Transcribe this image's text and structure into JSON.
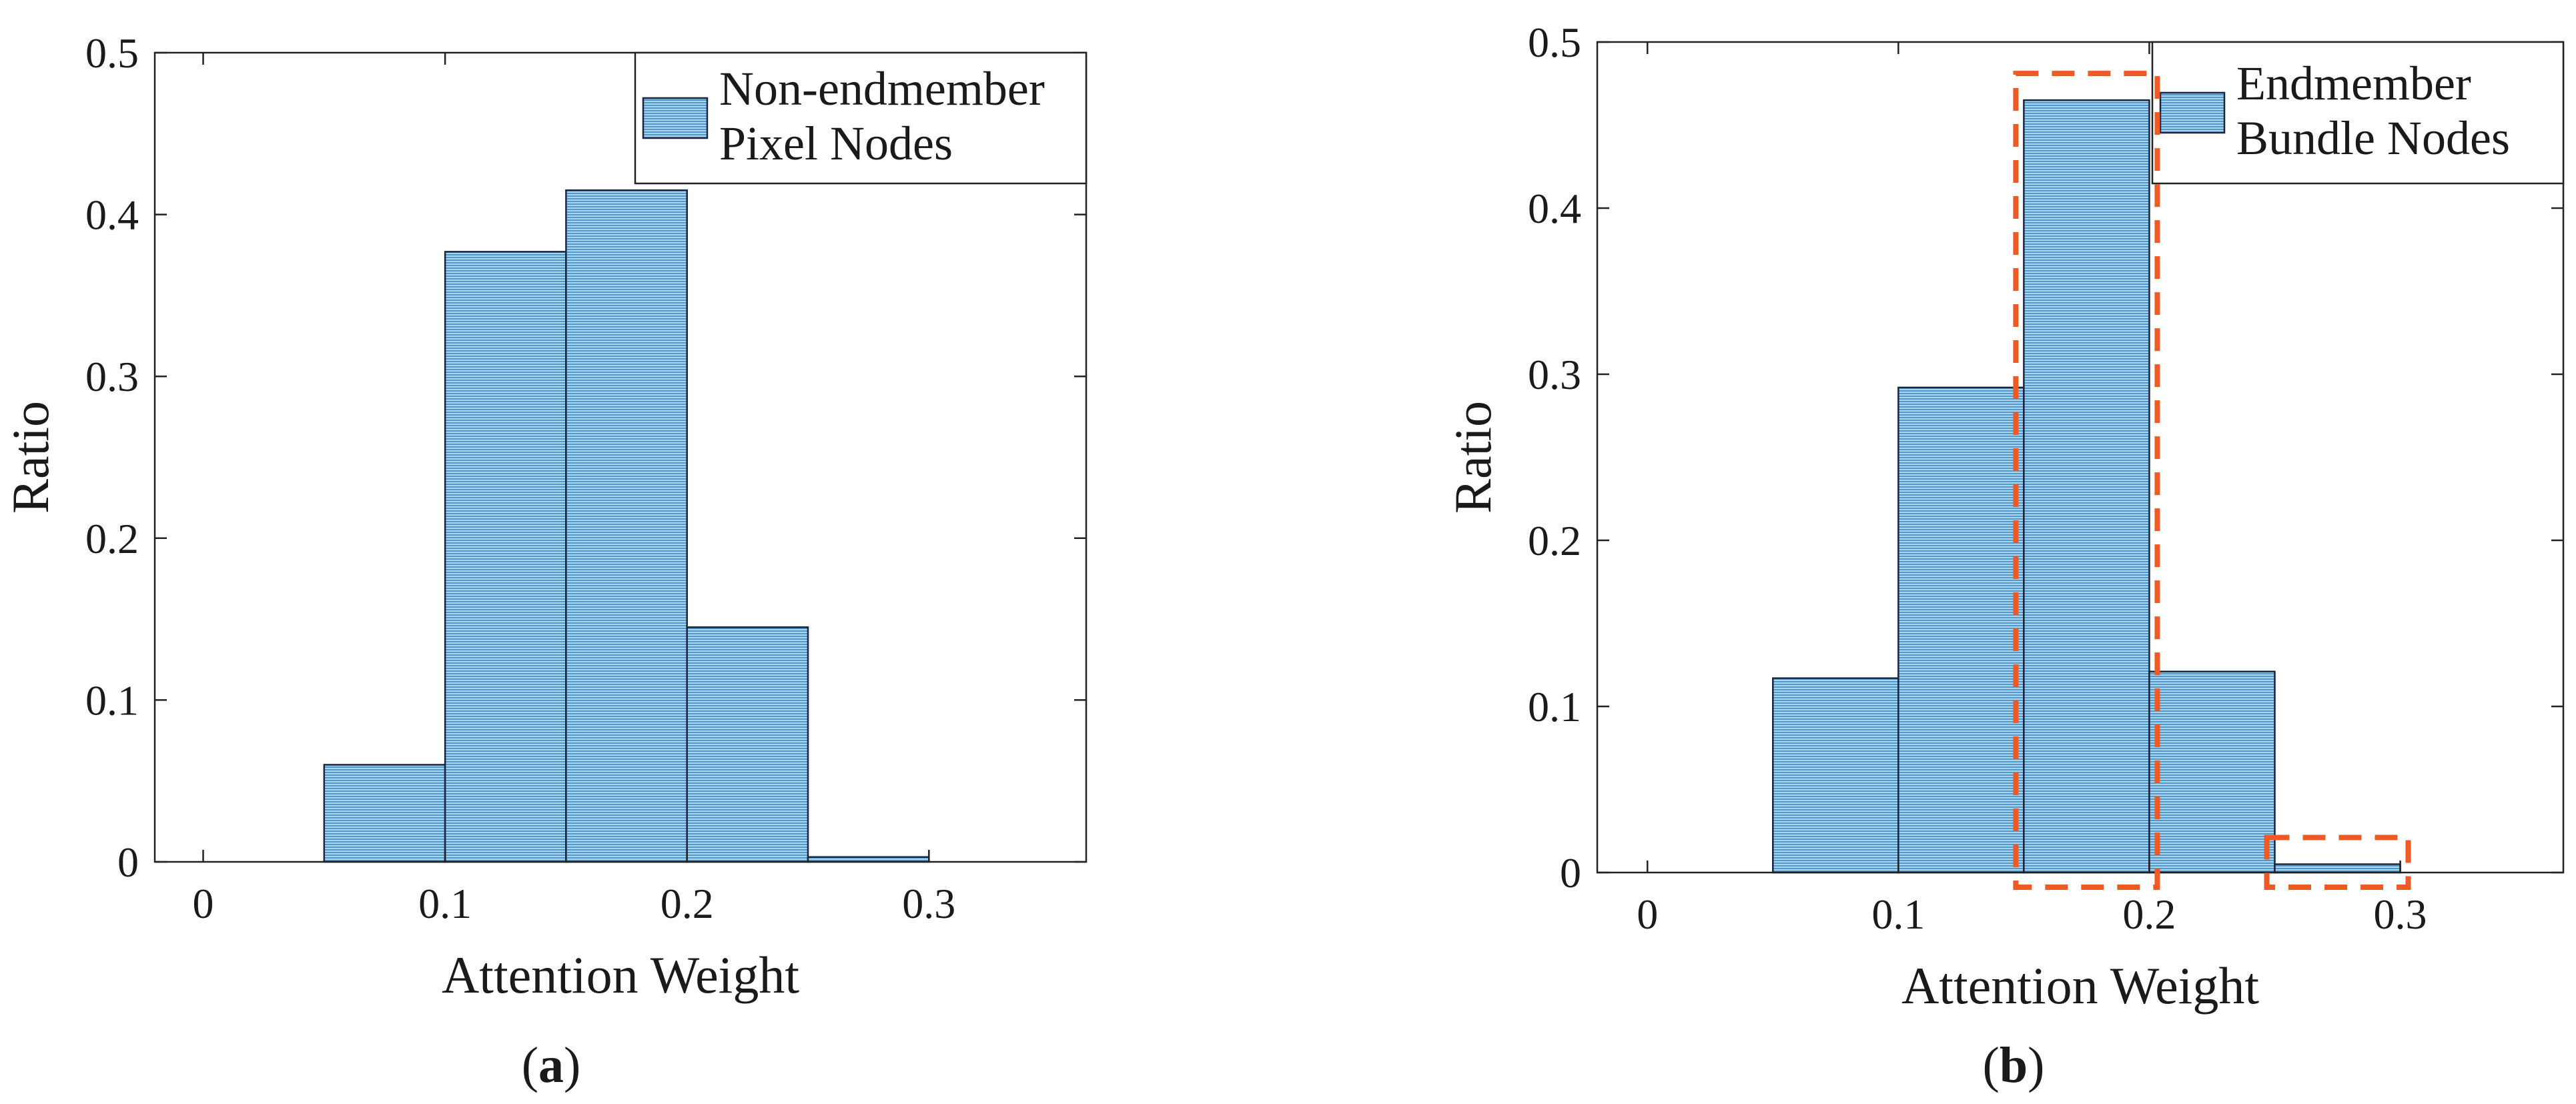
{
  "colors": {
    "bar_fill": "#a9d7ef",
    "bar_hatch": "#3b86c2",
    "bar_edge": "#1a2540",
    "axis": "#222222",
    "highlight": "#ee5a24"
  },
  "chart_data": [
    {
      "type": "bar",
      "panel_label": {
        "open": "(",
        "letter": "a",
        "close": ")"
      },
      "xlabel": "Attention Weight",
      "ylabel": "Ratio",
      "xlim": [
        -0.02,
        0.365
      ],
      "ylim": [
        0,
        0.5
      ],
      "xticks": [
        0,
        0.1,
        0.2,
        0.3
      ],
      "xtick_labels": [
        "0",
        "0.1",
        "0.2",
        "0.3"
      ],
      "yticks": [
        0,
        0.1,
        0.2,
        0.3,
        0.4,
        0.5
      ],
      "ytick_labels": [
        "0",
        "0.1",
        "0.2",
        "0.3",
        "0.4",
        "0.5"
      ],
      "bin_edges": [
        0,
        0.05,
        0.1,
        0.15,
        0.2,
        0.25,
        0.3
      ],
      "values": [
        0,
        0.06,
        0.377,
        0.415,
        0.145,
        0.003
      ],
      "legend": {
        "lines": [
          "Non-endmember",
          "Pixel Nodes"
        ],
        "placement": "top-right"
      },
      "highlight_bins": []
    },
    {
      "type": "bar",
      "panel_label": {
        "open": "(",
        "letter": "b",
        "close": ")"
      },
      "xlabel": "Attention Weight",
      "ylabel": "Ratio",
      "xlim": [
        -0.02,
        0.365
      ],
      "ylim": [
        0,
        0.5
      ],
      "xticks": [
        0,
        0.1,
        0.2,
        0.3
      ],
      "xtick_labels": [
        "0",
        "0.1",
        "0.2",
        "0.3"
      ],
      "yticks": [
        0,
        0.1,
        0.2,
        0.3,
        0.4,
        0.5
      ],
      "ytick_labels": [
        "0",
        "0.1",
        "0.2",
        "0.3",
        "0.4",
        "0.5"
      ],
      "bin_edges": [
        0,
        0.05,
        0.1,
        0.15,
        0.2,
        0.25,
        0.3
      ],
      "values": [
        0,
        0.117,
        0.292,
        0.465,
        0.121,
        0.005
      ],
      "legend": {
        "lines": [
          "Endmember",
          "Bundle Nodes"
        ],
        "placement": "top-right"
      },
      "highlight_bins": [
        3,
        5
      ]
    }
  ]
}
